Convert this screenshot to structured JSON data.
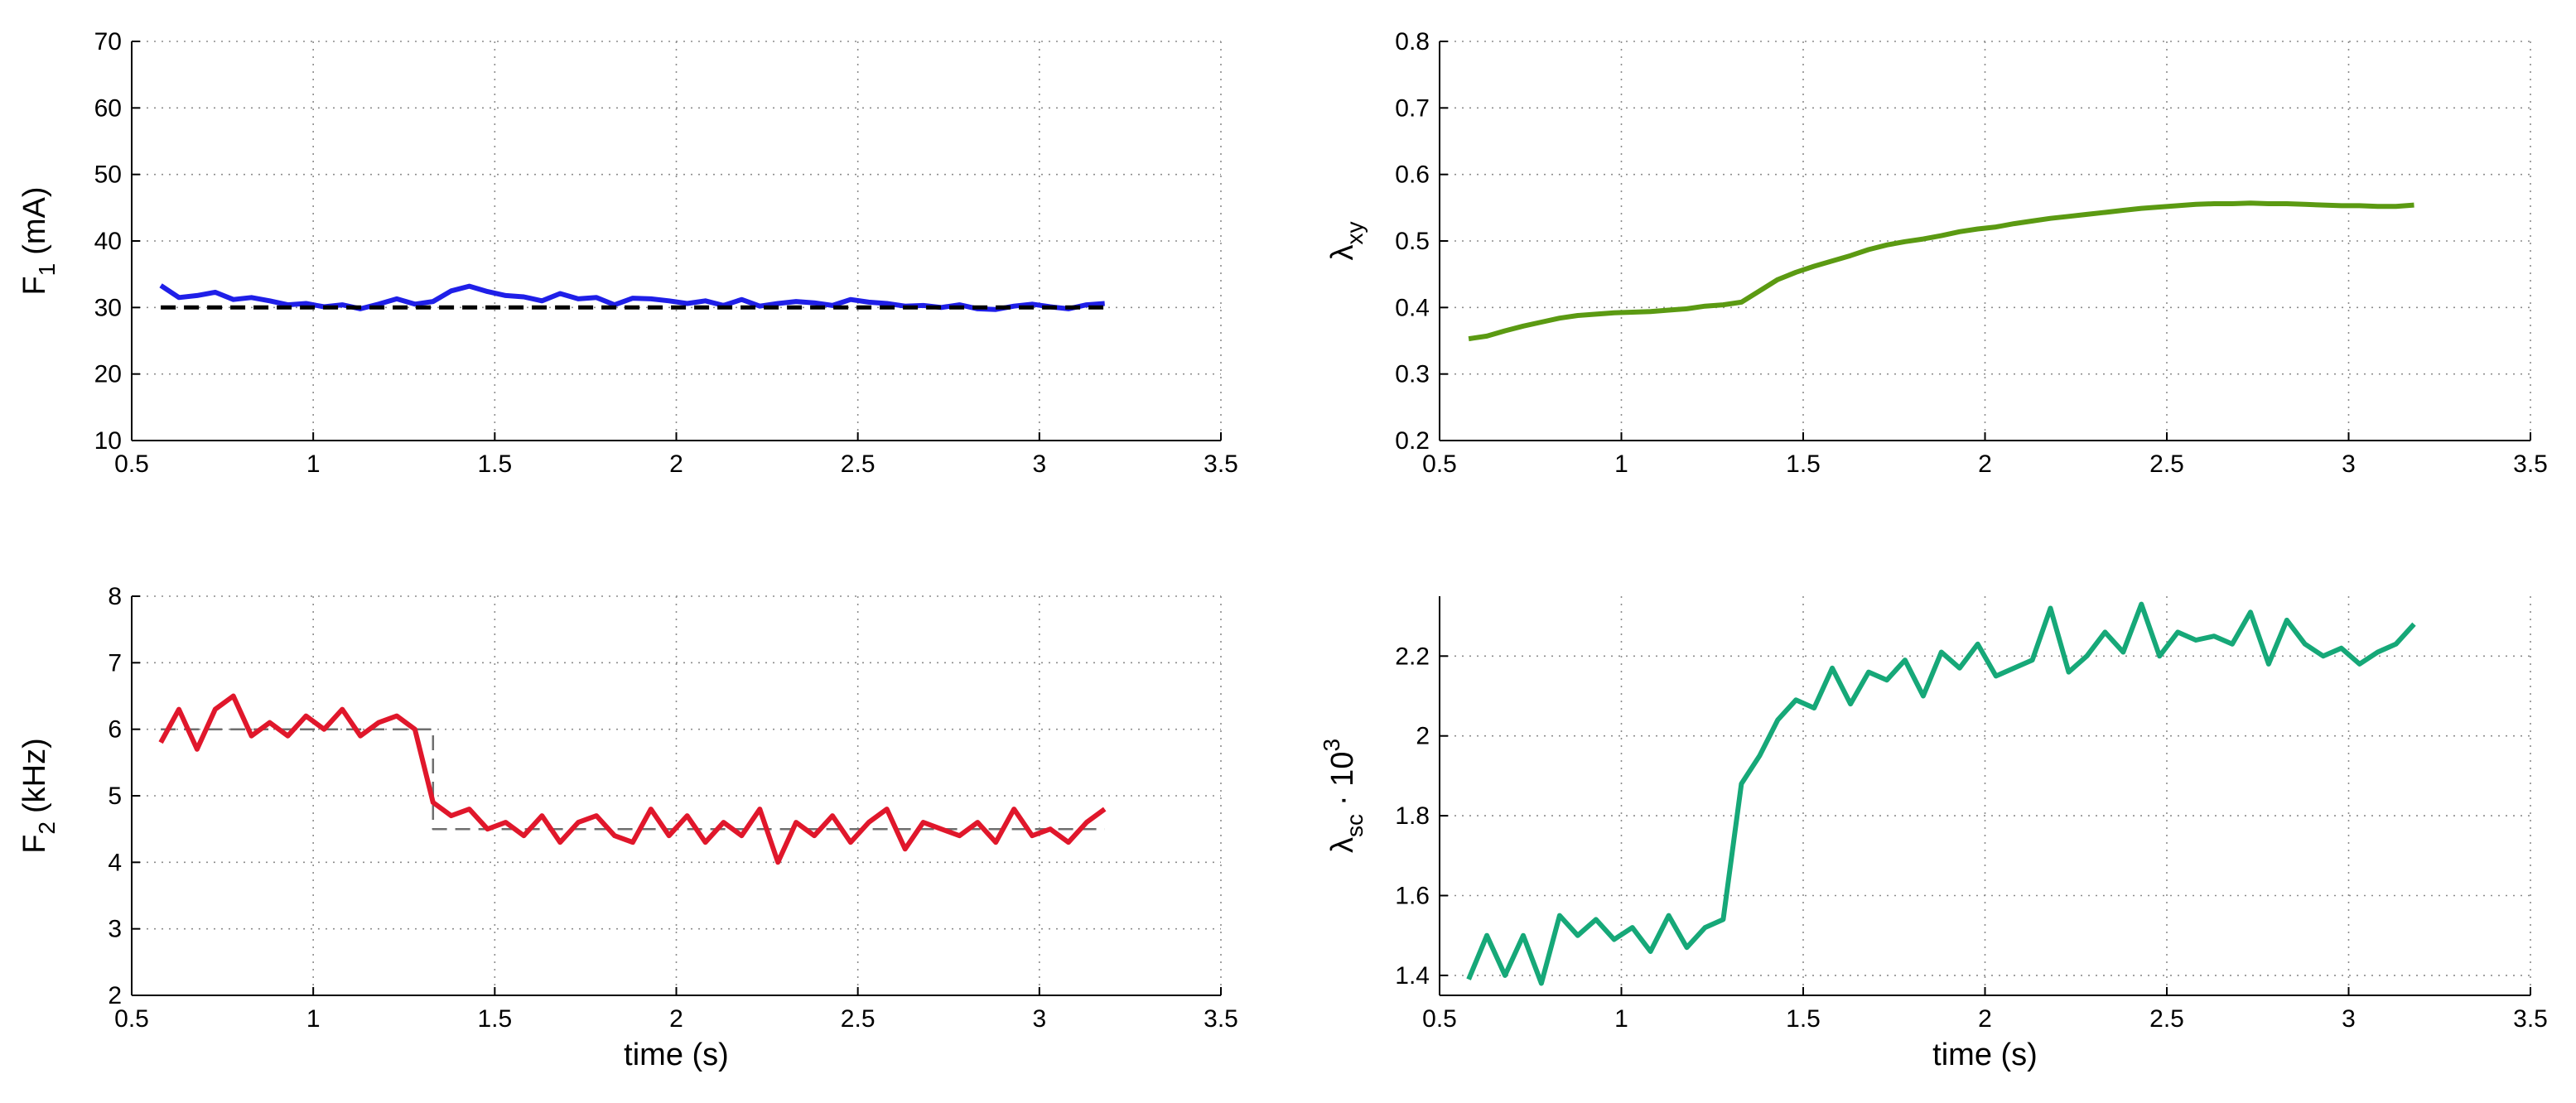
{
  "chart_data": [
    {
      "type": "line",
      "ylabel": {
        "text": "F",
        "subscript": "1",
        "suffix": "(mA)"
      },
      "x": [
        0.58,
        0.63,
        0.68,
        0.73,
        0.78,
        0.83,
        0.88,
        0.93,
        0.98,
        1.03,
        1.08,
        1.13,
        1.18,
        1.23,
        1.28,
        1.33,
        1.38,
        1.43,
        1.48,
        1.53,
        1.58,
        1.63,
        1.68,
        1.73,
        1.78,
        1.83,
        1.88,
        1.93,
        1.98,
        2.03,
        2.08,
        2.13,
        2.18,
        2.23,
        2.28,
        2.33,
        2.38,
        2.43,
        2.48,
        2.53,
        2.58,
        2.63,
        2.68,
        2.73,
        2.78,
        2.83,
        2.88,
        2.93,
        2.98,
        3.03,
        3.08,
        3.13,
        3.18
      ],
      "series": [
        {
          "color": "#1f1fe8",
          "values": [
            33.3,
            31.5,
            31.8,
            32.3,
            31.2,
            31.5,
            31.0,
            30.4,
            30.6,
            30.1,
            30.4,
            29.8,
            30.5,
            31.3,
            30.5,
            30.9,
            32.5,
            33.2,
            32.4,
            31.8,
            31.6,
            31.0,
            32.1,
            31.3,
            31.5,
            30.4,
            31.4,
            31.3,
            31.0,
            30.6,
            31.0,
            30.3,
            31.2,
            30.2,
            30.6,
            30.9,
            30.7,
            30.3,
            31.2,
            30.8,
            30.6,
            30.2,
            30.3,
            30.0,
            30.4,
            29.8,
            29.7,
            30.2,
            30.5,
            30.1,
            29.8,
            30.4,
            30.6
          ]
        },
        {
          "color": "#000000",
          "dash": true,
          "x": [
            0.58,
            3.18
          ],
          "values": [
            30,
            30
          ]
        }
      ],
      "xlim": [
        0.5,
        3.5
      ],
      "xticks": [
        0.5,
        1,
        1.5,
        2,
        2.5,
        3,
        3.5
      ],
      "ylim": [
        10,
        70
      ],
      "yticks": [
        10,
        20,
        30,
        40,
        50,
        60,
        70
      ],
      "grid": true
    },
    {
      "type": "line",
      "ylabel": {
        "text": "λ",
        "subscript": "xy"
      },
      "x": [
        0.58,
        0.63,
        0.68,
        0.73,
        0.78,
        0.83,
        0.88,
        0.93,
        0.98,
        1.03,
        1.08,
        1.13,
        1.18,
        1.23,
        1.28,
        1.33,
        1.38,
        1.43,
        1.48,
        1.53,
        1.58,
        1.63,
        1.68,
        1.73,
        1.78,
        1.83,
        1.88,
        1.93,
        1.98,
        2.03,
        2.08,
        2.13,
        2.18,
        2.23,
        2.28,
        2.33,
        2.38,
        2.43,
        2.48,
        2.53,
        2.58,
        2.63,
        2.68,
        2.73,
        2.78,
        2.83,
        2.88,
        2.93,
        2.98,
        3.03,
        3.08,
        3.13,
        3.18
      ],
      "series": [
        {
          "color": "#5b9a12",
          "values": [
            0.353,
            0.357,
            0.365,
            0.372,
            0.378,
            0.384,
            0.388,
            0.39,
            0.392,
            0.393,
            0.394,
            0.396,
            0.398,
            0.402,
            0.404,
            0.408,
            0.425,
            0.442,
            0.453,
            0.462,
            0.47,
            0.478,
            0.487,
            0.494,
            0.499,
            0.503,
            0.508,
            0.514,
            0.518,
            0.521,
            0.526,
            0.53,
            0.534,
            0.537,
            0.54,
            0.543,
            0.546,
            0.549,
            0.551,
            0.553,
            0.555,
            0.556,
            0.556,
            0.557,
            0.556,
            0.556,
            0.555,
            0.554,
            0.553,
            0.553,
            0.552,
            0.552,
            0.554
          ]
        }
      ],
      "xlim": [
        0.5,
        3.5
      ],
      "xticks": [
        0.5,
        1,
        1.5,
        2,
        2.5,
        3,
        3.5
      ],
      "ylim": [
        0.2,
        0.8
      ],
      "yticks": [
        0.2,
        0.3,
        0.4,
        0.5,
        0.6,
        0.7,
        0.8
      ],
      "grid": true
    },
    {
      "type": "line",
      "ylabel": {
        "text": "F",
        "subscript": "2",
        "suffix": "(kHz)"
      },
      "xlabel": "time (s)",
      "x": [
        0.58,
        0.63,
        0.68,
        0.73,
        0.78,
        0.83,
        0.88,
        0.93,
        0.98,
        1.03,
        1.08,
        1.13,
        1.18,
        1.23,
        1.28,
        1.33,
        1.38,
        1.43,
        1.48,
        1.53,
        1.58,
        1.63,
        1.68,
        1.73,
        1.78,
        1.83,
        1.88,
        1.93,
        1.98,
        2.03,
        2.08,
        2.13,
        2.18,
        2.23,
        2.28,
        2.33,
        2.38,
        2.43,
        2.48,
        2.53,
        2.58,
        2.63,
        2.68,
        2.73,
        2.78,
        2.83,
        2.88,
        2.93,
        2.98,
        3.03,
        3.08,
        3.13,
        3.18
      ],
      "series": [
        {
          "color": "#6e6e6e",
          "dash": true,
          "x": [
            0.58,
            1.33,
            1.33,
            3.18
          ],
          "values": [
            6,
            6,
            4.5,
            4.5
          ]
        },
        {
          "color": "#e0172b",
          "values": [
            5.8,
            6.3,
            5.7,
            6.3,
            6.5,
            5.9,
            6.1,
            5.9,
            6.2,
            6.0,
            6.3,
            5.9,
            6.1,
            6.2,
            6.0,
            4.9,
            4.7,
            4.8,
            4.5,
            4.6,
            4.4,
            4.7,
            4.3,
            4.6,
            4.7,
            4.4,
            4.3,
            4.8,
            4.4,
            4.7,
            4.3,
            4.6,
            4.4,
            4.8,
            4.0,
            4.6,
            4.4,
            4.7,
            4.3,
            4.6,
            4.8,
            4.2,
            4.6,
            4.5,
            4.4,
            4.6,
            4.3,
            4.8,
            4.4,
            4.5,
            4.3,
            4.6,
            4.8
          ]
        }
      ],
      "xlim": [
        0.5,
        3.5
      ],
      "xticks": [
        0.5,
        1,
        1.5,
        2,
        2.5,
        3,
        3.5
      ],
      "ylim": [
        2,
        8
      ],
      "yticks": [
        2,
        3,
        4,
        5,
        6,
        7,
        8
      ],
      "grid": true
    },
    {
      "type": "line",
      "ylabel": {
        "text": "λ",
        "subscript": "sc",
        "suffix": "· 10",
        "superscript": "3"
      },
      "xlabel": "time (s)",
      "x": [
        0.58,
        0.63,
        0.68,
        0.73,
        0.78,
        0.83,
        0.88,
        0.93,
        0.98,
        1.03,
        1.08,
        1.13,
        1.18,
        1.23,
        1.28,
        1.33,
        1.38,
        1.43,
        1.48,
        1.53,
        1.58,
        1.63,
        1.68,
        1.73,
        1.78,
        1.83,
        1.88,
        1.93,
        1.98,
        2.03,
        2.08,
        2.13,
        2.18,
        2.23,
        2.28,
        2.33,
        2.38,
        2.43,
        2.48,
        2.53,
        2.58,
        2.63,
        2.68,
        2.73,
        2.78,
        2.83,
        2.88,
        2.93,
        2.98,
        3.03,
        3.08,
        3.13,
        3.18
      ],
      "series": [
        {
          "color": "#16a878",
          "values": [
            1.39,
            1.5,
            1.4,
            1.5,
            1.38,
            1.55,
            1.5,
            1.54,
            1.49,
            1.52,
            1.46,
            1.55,
            1.47,
            1.52,
            1.54,
            1.88,
            1.95,
            2.04,
            2.09,
            2.07,
            2.17,
            2.08,
            2.16,
            2.14,
            2.19,
            2.1,
            2.21,
            2.17,
            2.23,
            2.15,
            2.17,
            2.19,
            2.32,
            2.16,
            2.2,
            2.26,
            2.21,
            2.33,
            2.2,
            2.26,
            2.24,
            2.25,
            2.23,
            2.31,
            2.18,
            2.29,
            2.23,
            2.2,
            2.22,
            2.18,
            2.21,
            2.23,
            2.28
          ]
        }
      ],
      "xlim": [
        0.5,
        3.5
      ],
      "xticks": [
        0.5,
        1,
        1.5,
        2,
        2.5,
        3,
        3.5
      ],
      "ylim": [
        1.35,
        2.35
      ],
      "yticks": [
        1.4,
        1.6,
        1.8,
        2,
        2.2
      ],
      "grid": true
    }
  ]
}
